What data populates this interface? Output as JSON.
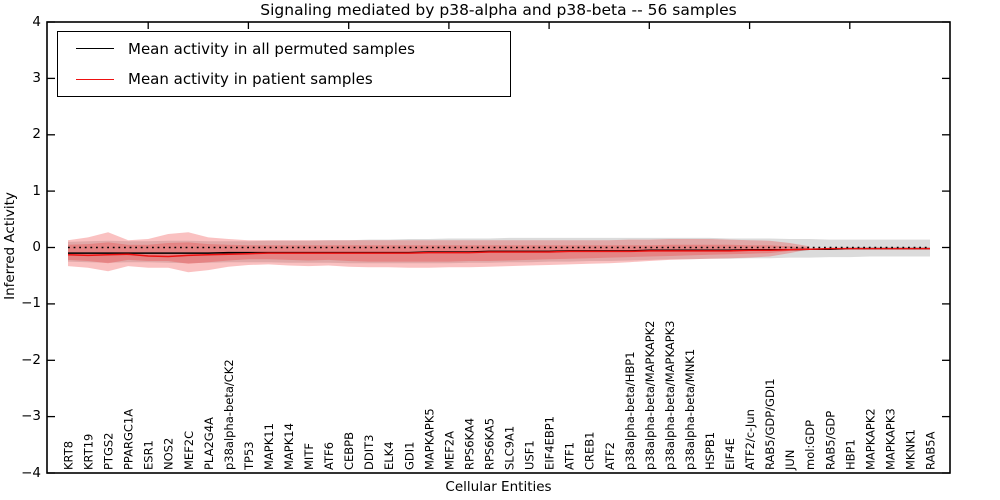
{
  "chart_data": {
    "type": "line",
    "title": "Signaling mediated by p38-alpha and p38-beta -- 56 samples",
    "xlabel": "Cellular Entities",
    "ylabel": "Inferred Activity",
    "ylim": [
      -4,
      4
    ],
    "yticks": [
      4,
      3,
      2,
      1,
      0,
      -1,
      -2,
      -3,
      -4
    ],
    "x_major_tick_every": 5,
    "grid": false,
    "legend_position": "upper left",
    "zero_line": {
      "value": 0,
      "color": "#000000",
      "style": "dotted"
    },
    "categories": [
      "KRT8",
      "KRT19",
      "PTGS2",
      "PPARGC1A",
      "ESR1",
      "NOS2",
      "MEF2C",
      "PLA2G4A",
      "p38alpha-beta/CK2",
      "TP53",
      "MAPK11",
      "MAPK14",
      "MITF",
      "ATF6",
      "CEBPB",
      "DDIT3",
      "ELK4",
      "GDI1",
      "MAPKAPK5",
      "MEF2A",
      "RPS6KA4",
      "RPS6KA5",
      "SLC9A1",
      "USF1",
      "EIF4EBP1",
      "ATF1",
      "CREB1",
      "ATF2",
      "p38alpha-beta/HBP1",
      "p38alpha-beta/MAPKAPK2",
      "p38alpha-beta/MAPKAPK3",
      "p38alpha-beta/MNK1",
      "HSPB1",
      "EIF4E",
      "ATF2/c-Jun",
      "RAB5/GDP/GDI1",
      "JUN",
      "mol:GDP",
      "RAB5/GDP",
      "HBP1",
      "MAPKAPK2",
      "MAPKAPK3",
      "MKNK1",
      "RAB5A"
    ],
    "series": [
      {
        "name": "Mean activity in all permuted samples",
        "color": "#000000",
        "values": [
          -0.1,
          -0.1,
          -0.1,
          -0.1,
          -0.1,
          -0.1,
          -0.1,
          -0.1,
          -0.09,
          -0.09,
          -0.09,
          -0.09,
          -0.09,
          -0.09,
          -0.09,
          -0.09,
          -0.09,
          -0.09,
          -0.08,
          -0.08,
          -0.08,
          -0.07,
          -0.07,
          -0.07,
          -0.07,
          -0.06,
          -0.06,
          -0.06,
          -0.06,
          -0.05,
          -0.05,
          -0.05,
          -0.05,
          -0.05,
          -0.04,
          -0.04,
          -0.04,
          -0.03,
          -0.03,
          -0.02,
          -0.02,
          -0.02,
          -0.02,
          -0.02
        ]
      },
      {
        "name": "Mean activity in patient samples",
        "color": "#ee1111",
        "values": [
          -0.13,
          -0.14,
          -0.13,
          -0.12,
          -0.15,
          -0.16,
          -0.14,
          -0.13,
          -0.12,
          -0.11,
          -0.1,
          -0.1,
          -0.1,
          -0.1,
          -0.1,
          -0.1,
          -0.1,
          -0.1,
          -0.09,
          -0.09,
          -0.09,
          -0.08,
          -0.08,
          -0.08,
          -0.08,
          -0.07,
          -0.07,
          -0.07,
          -0.07,
          -0.06,
          -0.06,
          -0.06,
          -0.06,
          -0.06,
          -0.05,
          -0.05,
          -0.04,
          -0.03,
          -0.02,
          -0.02,
          -0.02,
          -0.02,
          -0.02,
          -0.02
        ]
      }
    ],
    "bands": [
      {
        "name": "permuted-samples-range",
        "color": "#999999",
        "opacity": 0.35,
        "start_index": 0,
        "hi": [
          0.1,
          0.11,
          0.12,
          0.11,
          0.11,
          0.12,
          0.12,
          0.11,
          0.11,
          0.11,
          0.12,
          0.12,
          0.12,
          0.13,
          0.13,
          0.14,
          0.14,
          0.15,
          0.15,
          0.16,
          0.16,
          0.16,
          0.17,
          0.17,
          0.17,
          0.17,
          0.17,
          0.17,
          0.17,
          0.17,
          0.17,
          0.17,
          0.17,
          0.16,
          0.16,
          0.16,
          0.15,
          0.15,
          0.14,
          0.14,
          0.14,
          0.14,
          0.14,
          0.14
        ],
        "lo": [
          -0.25,
          -0.26,
          -0.27,
          -0.26,
          -0.26,
          -0.27,
          -0.28,
          -0.27,
          -0.26,
          -0.26,
          -0.26,
          -0.27,
          -0.27,
          -0.27,
          -0.28,
          -0.28,
          -0.28,
          -0.28,
          -0.28,
          -0.28,
          -0.27,
          -0.27,
          -0.26,
          -0.26,
          -0.25,
          -0.25,
          -0.24,
          -0.24,
          -0.23,
          -0.22,
          -0.21,
          -0.21,
          -0.2,
          -0.2,
          -0.19,
          -0.19,
          -0.18,
          -0.18,
          -0.17,
          -0.17,
          -0.16,
          -0.16,
          -0.16,
          -0.16
        ]
      },
      {
        "name": "patient-samples-range-outer",
        "color": "#ee3333",
        "opacity": 0.3,
        "start_index": 0,
        "hi": [
          0.13,
          0.18,
          0.27,
          0.13,
          0.15,
          0.24,
          0.27,
          0.18,
          0.15,
          0.13,
          0.13,
          0.13,
          0.13,
          0.13,
          0.13,
          0.13,
          0.13,
          0.13,
          0.13,
          0.13,
          0.13,
          0.13,
          0.13,
          0.13,
          0.13,
          0.13,
          0.13,
          0.13,
          0.14,
          0.14,
          0.15,
          0.15,
          0.15,
          0.14,
          0.13,
          0.12,
          0.08,
          0.02
        ],
        "lo": [
          -0.33,
          -0.36,
          -0.42,
          -0.33,
          -0.36,
          -0.36,
          -0.44,
          -0.4,
          -0.34,
          -0.31,
          -0.3,
          -0.32,
          -0.33,
          -0.32,
          -0.34,
          -0.35,
          -0.35,
          -0.36,
          -0.36,
          -0.35,
          -0.35,
          -0.34,
          -0.33,
          -0.32,
          -0.31,
          -0.3,
          -0.29,
          -0.28,
          -0.26,
          -0.24,
          -0.22,
          -0.21,
          -0.2,
          -0.19,
          -0.18,
          -0.16,
          -0.1,
          -0.03
        ]
      },
      {
        "name": "patient-samples-range-inner",
        "color": "#ee3333",
        "opacity": 0.3,
        "start_index": 0,
        "hi": [
          0.05,
          0.06,
          0.09,
          0.05,
          0.05,
          0.08,
          0.09,
          0.06,
          0.05,
          0.04,
          0.04,
          0.04,
          0.04,
          0.04,
          0.04,
          0.04,
          0.04,
          0.04,
          0.04,
          0.04,
          0.04,
          0.04,
          0.04,
          0.04,
          0.04,
          0.04,
          0.04,
          0.04,
          0.04,
          0.04,
          0.05,
          0.05,
          0.05,
          0.05,
          0.04,
          0.04,
          0.02,
          0.0
        ],
        "lo": [
          -0.22,
          -0.24,
          -0.28,
          -0.22,
          -0.24,
          -0.24,
          -0.29,
          -0.26,
          -0.23,
          -0.21,
          -0.21,
          -0.22,
          -0.23,
          -0.22,
          -0.24,
          -0.25,
          -0.25,
          -0.25,
          -0.25,
          -0.25,
          -0.24,
          -0.24,
          -0.23,
          -0.22,
          -0.21,
          -0.2,
          -0.19,
          -0.18,
          -0.17,
          -0.16,
          -0.15,
          -0.14,
          -0.13,
          -0.12,
          -0.11,
          -0.1,
          -0.06,
          -0.02
        ]
      }
    ]
  },
  "colors": {
    "axis": "#000000",
    "background": "#ffffff",
    "permuted_line": "#000000",
    "patient_line": "#ee1111",
    "patient_band": "#ee3333",
    "permuted_band": "#999999"
  }
}
